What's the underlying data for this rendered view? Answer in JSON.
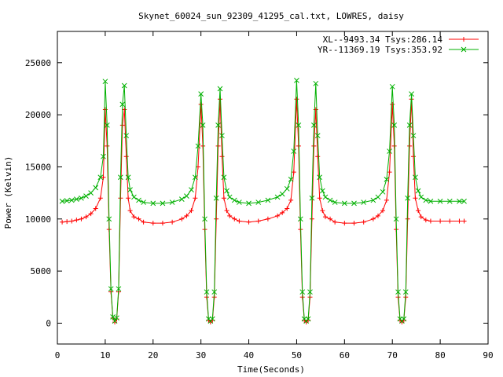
{
  "chart_data": {
    "type": "line",
    "title": "Skynet_60024_sun_92309_41295_cal.txt, LOWRES, daisy",
    "xlabel": "Time(Seconds)",
    "ylabel": "Power (Kelvin)",
    "xlim": [
      0,
      90
    ],
    "ylim": [
      -2000,
      28000
    ],
    "xticks": [
      0,
      10,
      20,
      30,
      40,
      50,
      60,
      70,
      80,
      90
    ],
    "yticks": [
      0,
      5000,
      10000,
      15000,
      20000,
      25000
    ],
    "grid": false,
    "legend_position": "top-right",
    "series": [
      {
        "name": "XL--9493.34 Tsys:286.14",
        "color": "#ff0000",
        "marker": "plus",
        "x": [
          1,
          2,
          3,
          4,
          5,
          6,
          7,
          8,
          9,
          9.6,
          10,
          10.4,
          10.8,
          11.2,
          11.6,
          12,
          12.4,
          12.8,
          13.2,
          13.6,
          14,
          14.4,
          14.8,
          15.2,
          16,
          17,
          18,
          20,
          22,
          24,
          26,
          27,
          28,
          28.8,
          29.4,
          30,
          30.4,
          30.8,
          31.2,
          31.6,
          32,
          32.4,
          32.8,
          33.2,
          33.6,
          34,
          34.4,
          34.8,
          35.4,
          36,
          37,
          38,
          40,
          42,
          44,
          46,
          47,
          48,
          48.8,
          49.4,
          50,
          50.4,
          50.8,
          51.2,
          51.6,
          52,
          52.4,
          52.8,
          53.2,
          53.6,
          54,
          54.4,
          54.8,
          55.4,
          56,
          57,
          58,
          60,
          62,
          64,
          66,
          67,
          68,
          68.8,
          69.4,
          70,
          70.4,
          70.8,
          71.2,
          71.6,
          72,
          72.4,
          72.8,
          73.2,
          73.6,
          74,
          74.4,
          74.8,
          75.4,
          76,
          77,
          78,
          80,
          82,
          84,
          85
        ],
        "y": [
          9700,
          9750,
          9800,
          9900,
          10000,
          10200,
          10500,
          11000,
          12000,
          14000,
          20500,
          17000,
          9000,
          3000,
          500,
          100,
          400,
          3000,
          12000,
          19000,
          20500,
          16000,
          12000,
          10800,
          10200,
          10000,
          9700,
          9600,
          9600,
          9700,
          10000,
          10300,
          10800,
          12000,
          15000,
          21000,
          17000,
          9000,
          2500,
          300,
          100,
          300,
          2500,
          10000,
          17000,
          21500,
          16000,
          12000,
          10800,
          10300,
          10000,
          9800,
          9700,
          9800,
          10000,
          10300,
          10600,
          11000,
          11800,
          14500,
          21500,
          17000,
          9000,
          2500,
          300,
          100,
          300,
          2500,
          10000,
          17000,
          20500,
          16000,
          12000,
          10800,
          10200,
          10000,
          9700,
          9600,
          9600,
          9700,
          10000,
          10300,
          10800,
          11800,
          14500,
          21000,
          17000,
          9000,
          2500,
          300,
          100,
          300,
          2500,
          10000,
          17000,
          21500,
          16000,
          12000,
          10800,
          10200,
          9900,
          9800,
          9800,
          9800,
          9800,
          9800
        ]
      },
      {
        "name": "YR--11369.19 Tsys:353.92",
        "color": "#00b000",
        "marker": "cross",
        "x": [
          1,
          2,
          3,
          4,
          5,
          6,
          7,
          8,
          9,
          9.6,
          10,
          10.4,
          10.8,
          11.2,
          11.6,
          12,
          12.4,
          12.8,
          13.2,
          13.6,
          14,
          14.4,
          14.8,
          15.2,
          16,
          17,
          18,
          20,
          22,
          24,
          26,
          27,
          28,
          28.8,
          29.4,
          30,
          30.4,
          30.8,
          31.2,
          31.6,
          32,
          32.4,
          32.8,
          33.2,
          33.6,
          34,
          34.4,
          34.8,
          35.4,
          36,
          37,
          38,
          40,
          42,
          44,
          46,
          47,
          48,
          48.8,
          49.4,
          50,
          50.4,
          50.8,
          51.2,
          51.6,
          52,
          52.4,
          52.8,
          53.2,
          53.6,
          54,
          54.4,
          54.8,
          55.4,
          56,
          57,
          58,
          60,
          62,
          64,
          66,
          67,
          68,
          68.8,
          69.4,
          70,
          70.4,
          70.8,
          71.2,
          71.6,
          72,
          72.4,
          72.8,
          73.2,
          73.6,
          74,
          74.4,
          74.8,
          75.4,
          76,
          77,
          78,
          80,
          82,
          84,
          85
        ],
        "y": [
          11700,
          11750,
          11800,
          11900,
          12000,
          12200,
          12500,
          13000,
          14000,
          16000,
          23200,
          19000,
          10000,
          3300,
          600,
          200,
          500,
          3300,
          14000,
          21000,
          22800,
          18000,
          14000,
          12800,
          12100,
          11800,
          11600,
          11500,
          11500,
          11600,
          11900,
          12200,
          12800,
          14000,
          17000,
          22000,
          19000,
          10000,
          3000,
          400,
          200,
          400,
          3000,
          12000,
          19000,
          22500,
          18000,
          14000,
          12700,
          12100,
          11800,
          11600,
          11500,
          11600,
          11800,
          12100,
          12400,
          12900,
          13800,
          16500,
          23300,
          19000,
          10000,
          3000,
          400,
          200,
          400,
          3000,
          12000,
          19000,
          23000,
          18000,
          14000,
          12700,
          12100,
          11800,
          11600,
          11500,
          11500,
          11600,
          11800,
          12100,
          12600,
          13800,
          16500,
          22700,
          19000,
          10000,
          3000,
          400,
          200,
          400,
          3000,
          12000,
          19000,
          22000,
          18000,
          14000,
          12700,
          12100,
          11800,
          11700,
          11700,
          11700,
          11700,
          11700
        ]
      }
    ]
  }
}
